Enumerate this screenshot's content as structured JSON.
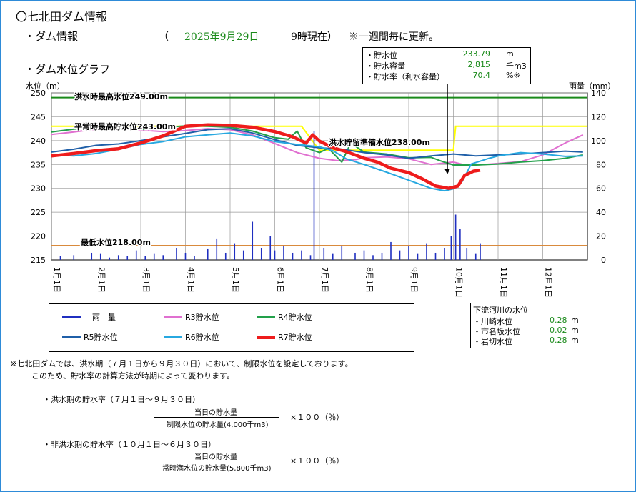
{
  "title": "〇七北田ダム情報",
  "dam_info": {
    "label": "・ダム情報",
    "paren_open": "（",
    "date": "2025年9月29日",
    "time": "9時現在）",
    "note": "※一週間毎に更新。"
  },
  "graph_heading": "・ダム水位グラフ",
  "storage_box": {
    "rows": [
      {
        "label": "・貯水位",
        "value": "233.79",
        "unit": "m"
      },
      {
        "label": "・貯水容量",
        "value": "2,815",
        "unit": "千m3"
      },
      {
        "label": "・貯水率（利水容量）",
        "value": "70.4",
        "unit": "%※"
      }
    ]
  },
  "river_box": {
    "title": "下流河川の水位",
    "rows": [
      {
        "label": "・川崎水位",
        "value": "0.28",
        "unit": "m"
      },
      {
        "label": "・市名坂水位",
        "value": "0.02",
        "unit": "m"
      },
      {
        "label": "・岩切水位",
        "value": "0.28",
        "unit": "m"
      }
    ]
  },
  "footnote": {
    "line1": "※七北田ダムでは、洪水期（７月１日から９月３０日）において、制限水位を設定しております。",
    "line2": "このため、貯水率の計算方法が時期によって変わります。"
  },
  "formulas": [
    {
      "heading": "・洪水期の貯水率（７月１日～９月３０日）",
      "numerator": "当日の貯水量",
      "denominator": "制限水位の貯水量(4,000千m3)",
      "multiplier": "×１００（％）"
    },
    {
      "heading": "・非洪水期の貯水率（１０月１日～６月３０日）",
      "numerator": "当日の貯水量",
      "denominator": "常時満水位の貯水量(5,800千m3)",
      "multiplier": "×１００（％）"
    }
  ],
  "chart_data": {
    "type": "line",
    "ylabel": "水位（m）",
    "y2label": "雨量（mm）",
    "ylim": [
      215,
      250
    ],
    "yticks": [
      215,
      220,
      225,
      230,
      235,
      240,
      245,
      250
    ],
    "y2lim": [
      0,
      140
    ],
    "y2ticks": [
      0,
      20,
      40,
      60,
      80,
      100,
      120,
      140
    ],
    "months": [
      "1月1日",
      "2月1日",
      "3月1日",
      "4月1日",
      "5月1日",
      "6月1日",
      "7月1日",
      "8月1日",
      "9月1日",
      "10月1日",
      "11月1日",
      "12月1日"
    ],
    "reference_lines": [
      {
        "label": "洪水時最高水位249.00m",
        "value": 249.0,
        "color": "#1a8a1a"
      },
      {
        "label": "平常時最高貯水位243.00m",
        "value": 243.0,
        "color": "#ffff00"
      },
      {
        "label": "洪水貯留準備水位238.00m",
        "value": 238.0,
        "color": "#ffff00"
      },
      {
        "label": "最低水位218.00m",
        "value": 218.0,
        "color": "#d98a3c"
      }
    ],
    "rule_levels": [
      {
        "from": 0,
        "to": 5.6,
        "value": 243.0
      },
      {
        "from": 6.0,
        "to": 9.0,
        "value": 238.0
      },
      {
        "from": 9.05,
        "to": 12,
        "value": 243.0
      }
    ],
    "series": [
      {
        "name": "R3貯水位",
        "color": "#e070d0",
        "points": [
          [
            0,
            241.3
          ],
          [
            0.5,
            241.8
          ],
          [
            1,
            242.4
          ],
          [
            1.5,
            242.7
          ],
          [
            2,
            242.2
          ],
          [
            2.5,
            241.9
          ],
          [
            3,
            242.1
          ],
          [
            3.5,
            242.5
          ],
          [
            4,
            242.3
          ],
          [
            4.5,
            241.2
          ],
          [
            5,
            239.4
          ],
          [
            5.5,
            237.5
          ],
          [
            6,
            236.3
          ],
          [
            6.4,
            235.8
          ],
          [
            6.8,
            236.0
          ],
          [
            7,
            236.4
          ],
          [
            7.5,
            236.6
          ],
          [
            8,
            236.2
          ],
          [
            8.5,
            235.0
          ],
          [
            9,
            235.5
          ],
          [
            9.3,
            234.8
          ],
          [
            9.7,
            235.0
          ],
          [
            10,
            235.2
          ],
          [
            10.5,
            235.6
          ],
          [
            11,
            237.0
          ],
          [
            11.5,
            239.5
          ],
          [
            11.9,
            241.2
          ]
        ]
      },
      {
        "name": "R4貯水位",
        "color": "#22a04a",
        "points": [
          [
            0,
            241.8
          ],
          [
            0.5,
            242.4
          ],
          [
            1,
            242.8
          ],
          [
            1.5,
            242.6
          ],
          [
            2,
            242.3
          ],
          [
            2.5,
            242.7
          ],
          [
            3,
            243.1
          ],
          [
            3.5,
            243.0
          ],
          [
            4,
            242.8
          ],
          [
            4.5,
            242.0
          ],
          [
            5,
            240.6
          ],
          [
            5.3,
            240.3
          ],
          [
            5.5,
            242.0
          ],
          [
            5.7,
            238.5
          ],
          [
            6,
            237.5
          ],
          [
            6.2,
            238.4
          ],
          [
            6.5,
            235.5
          ],
          [
            6.7,
            239.5
          ],
          [
            7,
            237.6
          ],
          [
            7.5,
            237.2
          ],
          [
            8,
            236.4
          ],
          [
            8.5,
            236.5
          ],
          [
            8.7,
            235.8
          ],
          [
            9,
            234.9
          ],
          [
            9.5,
            234.9
          ],
          [
            10,
            235.1
          ],
          [
            10.5,
            235.5
          ],
          [
            11,
            235.8
          ],
          [
            11.5,
            236.3
          ],
          [
            11.9,
            237.0
          ]
        ]
      },
      {
        "name": "R5貯水位",
        "color": "#1f5fa8",
        "points": [
          [
            0,
            237.6
          ],
          [
            0.5,
            238.2
          ],
          [
            1,
            239.0
          ],
          [
            1.5,
            239.3
          ],
          [
            2,
            240.0
          ],
          [
            2.5,
            240.8
          ],
          [
            3,
            241.5
          ],
          [
            3.5,
            242.3
          ],
          [
            4,
            242.5
          ],
          [
            4.5,
            241.6
          ],
          [
            5,
            240.2
          ],
          [
            5.5,
            239.0
          ],
          [
            6,
            238.5
          ],
          [
            6.5,
            238.2
          ],
          [
            7,
            237.5
          ],
          [
            7.5,
            237.0
          ],
          [
            8,
            236.3
          ],
          [
            8.5,
            236.8
          ],
          [
            9,
            237.2
          ],
          [
            9.5,
            236.8
          ],
          [
            10,
            237.0
          ],
          [
            10.5,
            237.2
          ],
          [
            11,
            237.5
          ],
          [
            11.5,
            237.8
          ],
          [
            11.9,
            237.6
          ]
        ]
      },
      {
        "name": "R6貯水位",
        "color": "#27a8e0",
        "points": [
          [
            0,
            237.1
          ],
          [
            0.5,
            236.8
          ],
          [
            1,
            237.3
          ],
          [
            1.5,
            238.2
          ],
          [
            2,
            239.2
          ],
          [
            2.5,
            239.8
          ],
          [
            3,
            240.8
          ],
          [
            3.5,
            241.2
          ],
          [
            4,
            241.6
          ],
          [
            4.5,
            241.0
          ],
          [
            5,
            239.8
          ],
          [
            5.5,
            239.2
          ],
          [
            6,
            238.7
          ],
          [
            6.3,
            237.9
          ],
          [
            6.6,
            236.2
          ],
          [
            7,
            235.0
          ],
          [
            7.5,
            233.4
          ],
          [
            8,
            231.7
          ],
          [
            8.5,
            230.0
          ],
          [
            8.8,
            229.5
          ],
          [
            9,
            229.9
          ],
          [
            9.2,
            231.5
          ],
          [
            9.4,
            235.1
          ],
          [
            9.8,
            236.3
          ],
          [
            10,
            236.8
          ],
          [
            10.5,
            237.5
          ],
          [
            11,
            237.2
          ],
          [
            11.5,
            236.7
          ],
          [
            11.9,
            236.8
          ]
        ]
      },
      {
        "name": "R7貯水位",
        "color": "#ee1c1c",
        "points": [
          [
            0,
            236.8
          ],
          [
            0.5,
            237.3
          ],
          [
            1,
            237.9
          ],
          [
            1.5,
            238.3
          ],
          [
            2,
            239.5
          ],
          [
            2.5,
            241.0
          ],
          [
            3,
            243.0
          ],
          [
            3.5,
            243.3
          ],
          [
            4,
            243.2
          ],
          [
            4.5,
            242.8
          ],
          [
            5,
            241.9
          ],
          [
            5.4,
            240.8
          ],
          [
            5.7,
            239.5
          ],
          [
            5.85,
            241.2
          ],
          [
            6,
            239.9
          ],
          [
            6.3,
            238.5
          ],
          [
            6.6,
            237.7
          ],
          [
            7,
            236.3
          ],
          [
            7.3,
            235.5
          ],
          [
            7.6,
            234.2
          ],
          [
            8,
            233.3
          ],
          [
            8.3,
            232.0
          ],
          [
            8.6,
            230.5
          ],
          [
            8.9,
            230.0
          ],
          [
            9.1,
            230.5
          ],
          [
            9.25,
            232.7
          ],
          [
            9.45,
            233.6
          ],
          [
            9.6,
            233.8
          ]
        ]
      }
    ],
    "rainfall": {
      "name": "雨　量",
      "color": "#1f2fc0",
      "bars": [
        [
          0.2,
          3
        ],
        [
          0.5,
          4
        ],
        [
          0.9,
          6
        ],
        [
          1.1,
          5
        ],
        [
          1.3,
          2
        ],
        [
          1.5,
          4
        ],
        [
          1.7,
          3
        ],
        [
          1.9,
          8
        ],
        [
          2.1,
          3
        ],
        [
          2.3,
          5
        ],
        [
          2.5,
          4
        ],
        [
          2.8,
          10
        ],
        [
          3.0,
          6
        ],
        [
          3.2,
          3
        ],
        [
          3.5,
          9
        ],
        [
          3.7,
          18
        ],
        [
          3.9,
          6
        ],
        [
          4.1,
          14
        ],
        [
          4.3,
          8
        ],
        [
          4.5,
          32
        ],
        [
          4.7,
          10
        ],
        [
          4.9,
          20
        ],
        [
          5.0,
          8
        ],
        [
          5.2,
          12
        ],
        [
          5.4,
          6
        ],
        [
          5.6,
          8
        ],
        [
          5.8,
          4
        ],
        [
          5.88,
          108
        ],
        [
          6.1,
          10
        ],
        [
          6.3,
          5
        ],
        [
          6.5,
          12
        ],
        [
          6.8,
          6
        ],
        [
          7.0,
          8
        ],
        [
          7.2,
          4
        ],
        [
          7.4,
          6
        ],
        [
          7.6,
          15
        ],
        [
          7.8,
          8
        ],
        [
          8.0,
          12
        ],
        [
          8.2,
          5
        ],
        [
          8.4,
          14
        ],
        [
          8.6,
          6
        ],
        [
          8.8,
          10
        ],
        [
          8.95,
          20
        ],
        [
          9.05,
          38
        ],
        [
          9.15,
          26
        ],
        [
          9.3,
          10
        ],
        [
          9.5,
          5
        ],
        [
          9.6,
          14
        ]
      ]
    }
  },
  "legend": [
    {
      "label": "雨　量",
      "color": "#1f2fc0",
      "kind": "bar"
    },
    {
      "label": "R3貯水位",
      "color": "#e070d0",
      "kind": "line"
    },
    {
      "label": "R4貯水位",
      "color": "#22a04a",
      "kind": "line"
    },
    {
      "label": "R5貯水位",
      "color": "#1f5fa8",
      "kind": "line"
    },
    {
      "label": "R6貯水位",
      "color": "#27a8e0",
      "kind": "line"
    },
    {
      "label": "R7貯水位",
      "color": "#ee1c1c",
      "kind": "thick"
    }
  ]
}
